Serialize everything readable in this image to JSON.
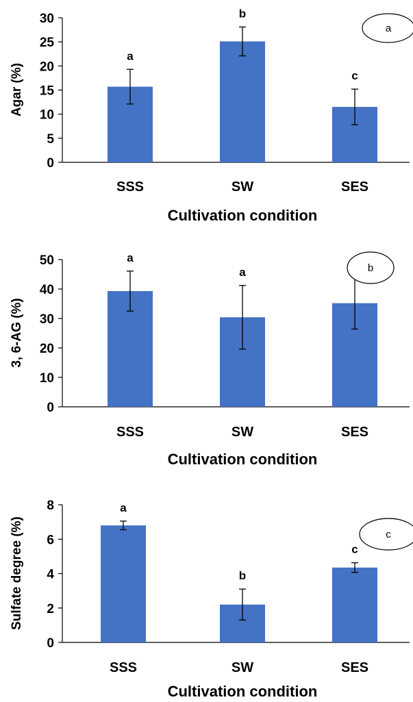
{
  "chart_data": [
    {
      "type": "bar",
      "panel_label": "a",
      "ylabel": "Agar (%)",
      "xlabel": "Cultivation condition",
      "categories": [
        "SSS",
        "SW",
        "SES"
      ],
      "values": [
        15.7,
        25.1,
        11.5
      ],
      "errors": [
        3.6,
        3.0,
        3.7
      ],
      "significance": [
        "a",
        "b",
        "c"
      ],
      "ylim": [
        0,
        30
      ],
      "yticks": [
        "0",
        "5",
        "10",
        "15",
        "20",
        "25",
        "30"
      ],
      "bar_color": "#4472C4"
    },
    {
      "type": "bar",
      "panel_label": "b",
      "ylabel": "3, 6-AG (%)",
      "xlabel": "Cultivation condition",
      "categories": [
        "SSS",
        "SW",
        "SES"
      ],
      "values": [
        39.3,
        30.4,
        35.2
      ],
      "errors": [
        6.8,
        10.8,
        8.8
      ],
      "significance": [
        "a",
        "a",
        "a"
      ],
      "ylim": [
        0,
        50
      ],
      "yticks": [
        "0",
        "10",
        "20",
        "30",
        "40",
        "50"
      ],
      "bar_color": "#4472C4"
    },
    {
      "type": "bar",
      "panel_label": "c",
      "ylabel": "Sulfate degree (%)",
      "xlabel": "Cultivation condition",
      "categories": [
        "SSS",
        "SW",
        "SES"
      ],
      "values": [
        6.8,
        2.2,
        4.35
      ],
      "errors": [
        0.25,
        0.9,
        0.28
      ],
      "significance": [
        "a",
        "b",
        "c"
      ],
      "ylim": [
        0,
        8
      ],
      "yticks": [
        "0",
        "2",
        "4",
        "6",
        "8"
      ],
      "bar_color": "#4472C4"
    }
  ]
}
